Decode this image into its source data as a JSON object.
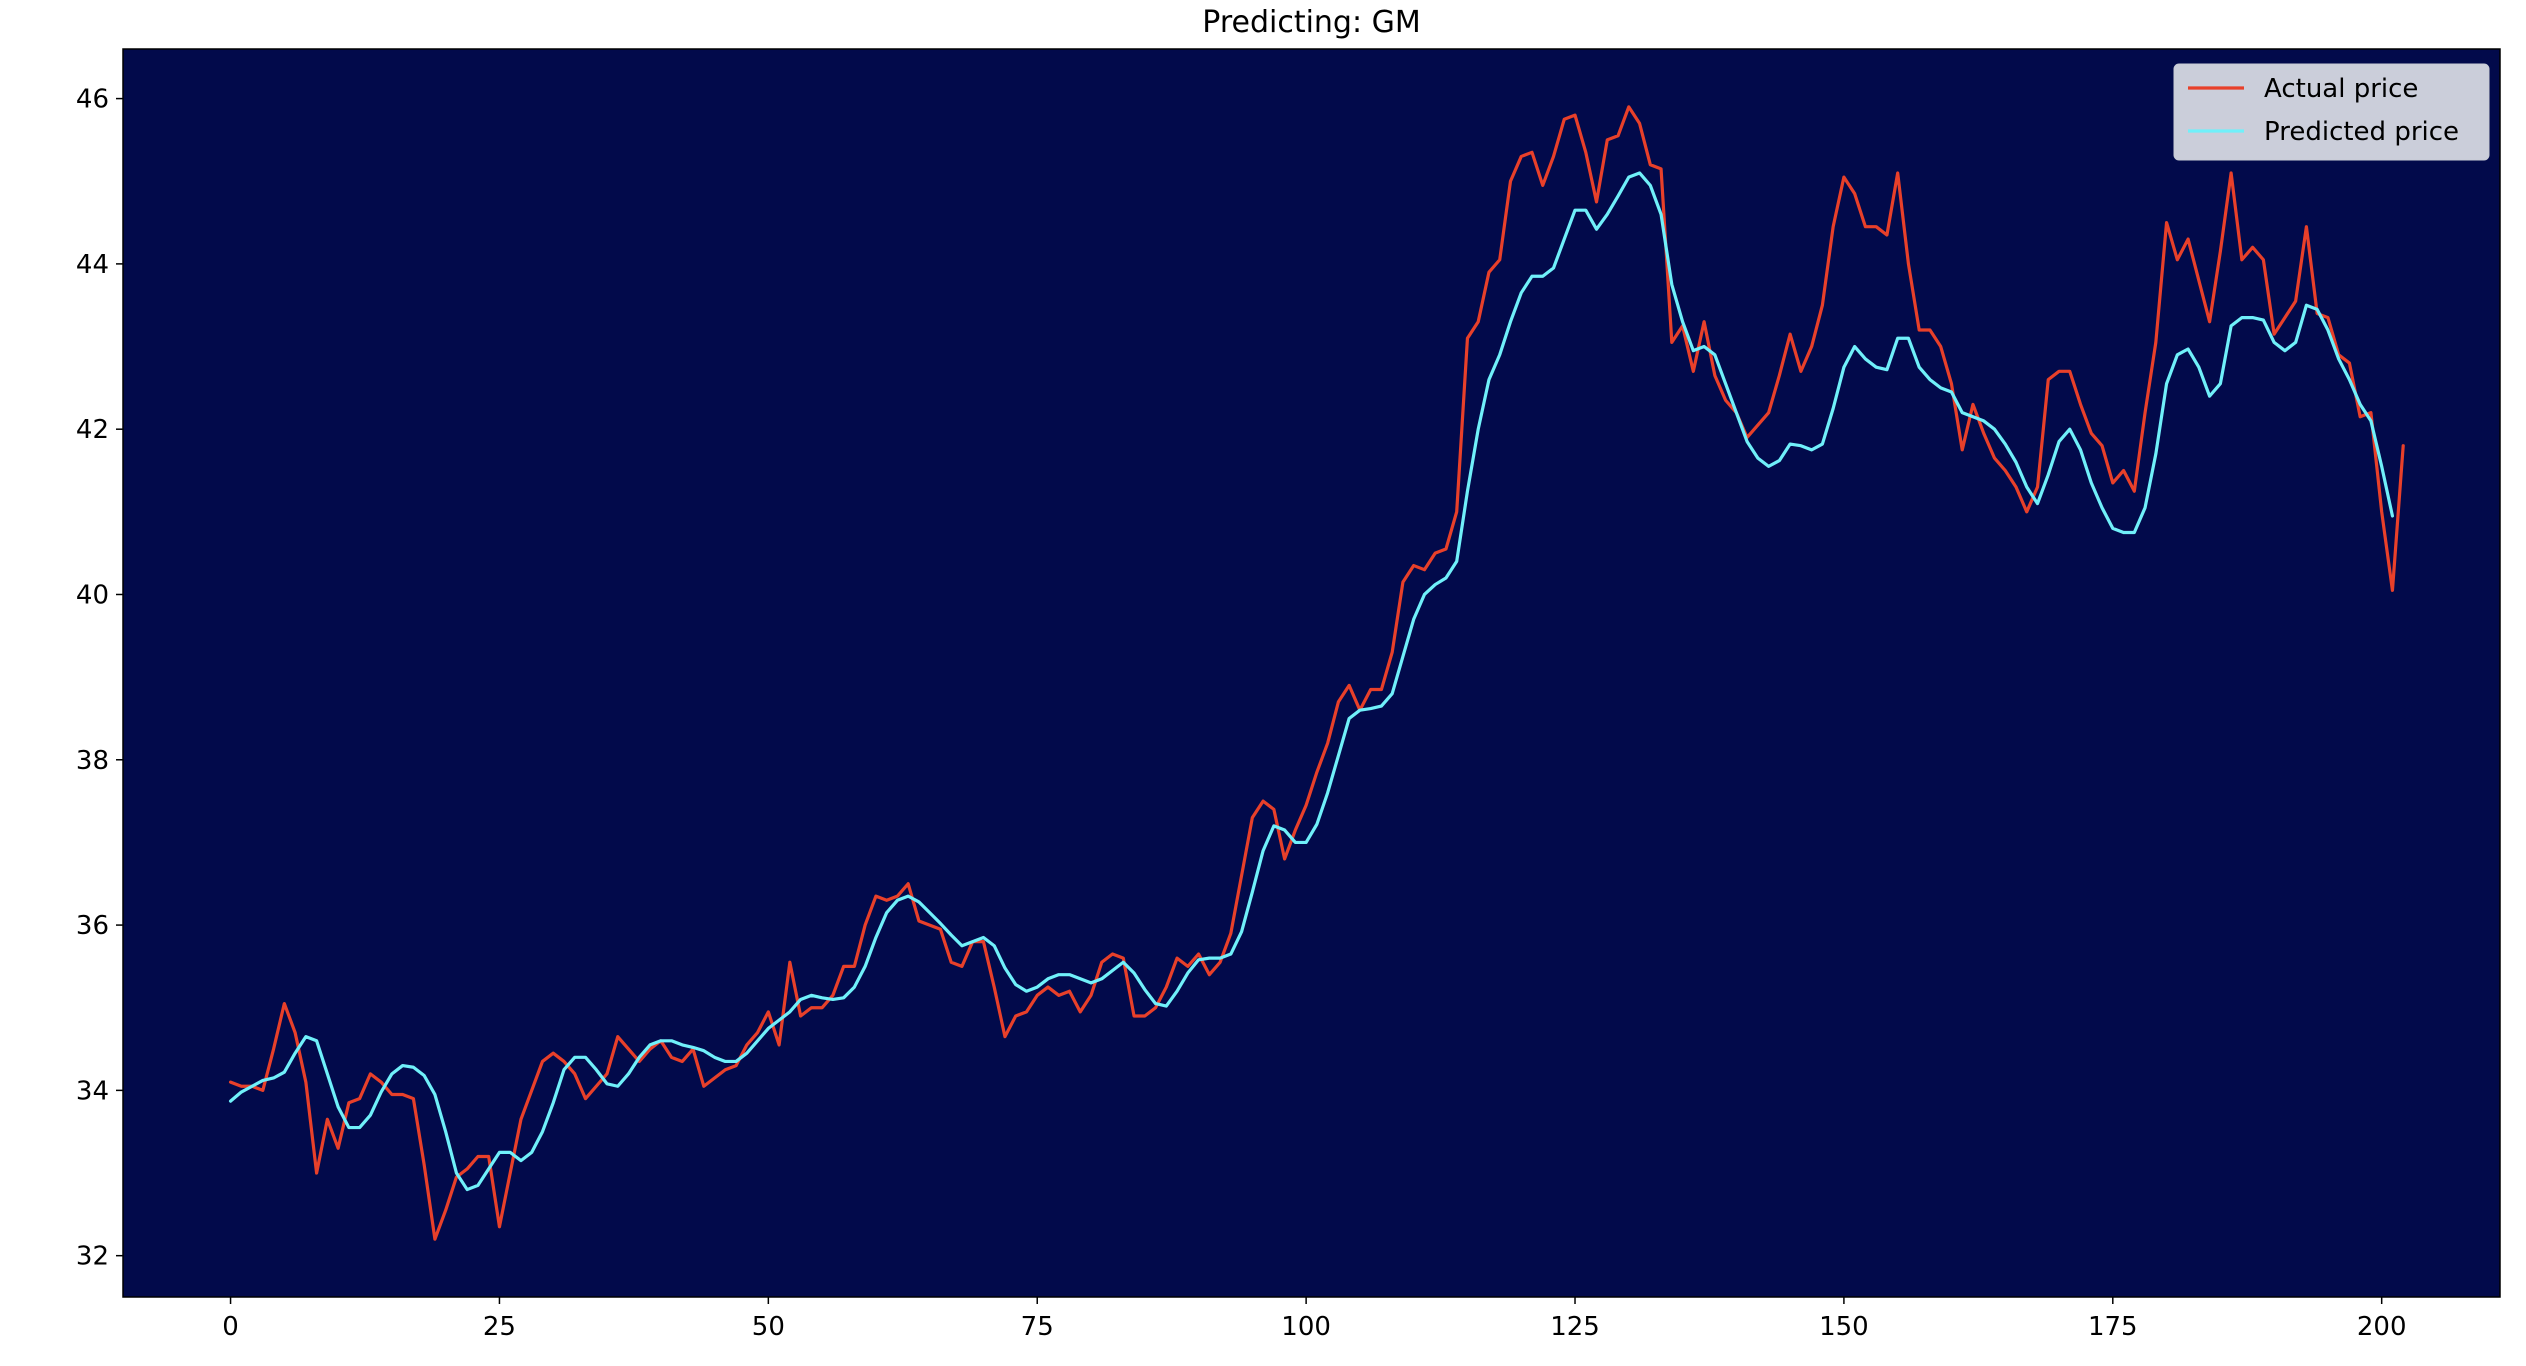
{
  "chart_data": {
    "type": "line",
    "title": "Predicting: GM",
    "xlabel": "",
    "ylabel": "",
    "xlim": [
      -10,
      211
    ],
    "ylim": [
      31.5,
      46.6
    ],
    "xticks": [
      0,
      25,
      50,
      75,
      100,
      125,
      150,
      175,
      200
    ],
    "yticks": [
      32,
      34,
      36,
      38,
      40,
      42,
      44,
      46
    ],
    "grid": false,
    "legend_placement": "top-right",
    "colors": {
      "plot_background": "#020a4b",
      "actual": "#e8402a",
      "predicted": "#70f0fa",
      "legend_background": "#d6d9e2"
    },
    "series": [
      {
        "name": "Actual price",
        "color": "#e8402a",
        "values": [
          34.1,
          34.05,
          34.05,
          34.0,
          34.5,
          35.05,
          34.7,
          34.1,
          33.0,
          33.65,
          33.3,
          33.85,
          33.9,
          34.2,
          34.1,
          33.95,
          33.95,
          33.9,
          33.1,
          32.2,
          32.55,
          32.95,
          33.05,
          33.2,
          33.2,
          32.35,
          33.0,
          33.65,
          34.0,
          34.35,
          34.45,
          34.35,
          34.2,
          33.9,
          34.05,
          34.2,
          34.65,
          34.5,
          34.35,
          34.5,
          34.6,
          34.4,
          34.35,
          34.5,
          34.05,
          34.15,
          34.25,
          34.3,
          34.55,
          34.7,
          34.95,
          34.55,
          35.55,
          34.9,
          35.0,
          35.0,
          35.15,
          35.5,
          35.5,
          36.0,
          36.35,
          36.3,
          36.35,
          36.5,
          36.05,
          36.0,
          35.95,
          35.55,
          35.5,
          35.8,
          35.8,
          35.25,
          34.65,
          34.9,
          34.95,
          35.15,
          35.25,
          35.15,
          35.2,
          34.95,
          35.15,
          35.55,
          35.65,
          35.6,
          34.9,
          34.9,
          35.0,
          35.25,
          35.6,
          35.5,
          35.65,
          35.4,
          35.55,
          35.9,
          36.6,
          37.3,
          37.5,
          37.4,
          36.8,
          37.15,
          37.45,
          37.85,
          38.2,
          38.7,
          38.9,
          38.6,
          38.85,
          38.85,
          39.3,
          40.15,
          40.35,
          40.3,
          40.5,
          40.55,
          41.0,
          43.1,
          43.3,
          43.9,
          44.05,
          45.0,
          45.3,
          45.35,
          44.95,
          45.3,
          45.75,
          45.8,
          45.35,
          44.75,
          45.5,
          45.55,
          45.9,
          45.7,
          45.2,
          45.15,
          43.05,
          43.25,
          42.7,
          43.3,
          42.65,
          42.35,
          42.2,
          41.9,
          42.05,
          42.2,
          42.65,
          43.15,
          42.7,
          43.0,
          43.5,
          44.45,
          45.05,
          44.85,
          44.45,
          44.45,
          44.35,
          45.1,
          44.0,
          43.2,
          43.2,
          43.0,
          42.55,
          41.75,
          42.3,
          41.95,
          41.65,
          41.5,
          41.3,
          41.0,
          41.3,
          42.6,
          42.7,
          42.7,
          42.3,
          41.95,
          41.8,
          41.35,
          41.5,
          41.25,
          42.2,
          43.05,
          44.5,
          44.05,
          44.3,
          43.8,
          43.3,
          44.15,
          45.1,
          44.05,
          44.2,
          44.05,
          43.15,
          43.35,
          43.55,
          44.45,
          43.4,
          43.35,
          42.9,
          42.8,
          42.15,
          42.2,
          41.0,
          40.05,
          41.8
        ]
      },
      {
        "name": "Predicted price",
        "color": "#70f0fa",
        "values": [
          33.87,
          33.98,
          34.05,
          34.12,
          34.15,
          34.22,
          34.45,
          34.65,
          34.6,
          34.2,
          33.8,
          33.55,
          33.55,
          33.7,
          33.98,
          34.2,
          34.3,
          34.28,
          34.18,
          33.95,
          33.5,
          33.0,
          32.8,
          32.85,
          33.05,
          33.25,
          33.25,
          33.15,
          33.25,
          33.5,
          33.85,
          34.25,
          34.4,
          34.4,
          34.25,
          34.08,
          34.05,
          34.2,
          34.4,
          34.55,
          34.6,
          34.6,
          34.55,
          34.52,
          34.48,
          34.4,
          34.35,
          34.35,
          34.45,
          34.6,
          34.75,
          34.85,
          34.95,
          35.1,
          35.15,
          35.12,
          35.1,
          35.12,
          35.25,
          35.5,
          35.85,
          36.15,
          36.3,
          36.35,
          36.28,
          36.15,
          36.02,
          35.88,
          35.75,
          35.8,
          35.85,
          35.75,
          35.48,
          35.28,
          35.2,
          35.25,
          35.35,
          35.4,
          35.4,
          35.35,
          35.3,
          35.35,
          35.45,
          35.55,
          35.42,
          35.22,
          35.05,
          35.02,
          35.2,
          35.42,
          35.58,
          35.6,
          35.6,
          35.65,
          35.92,
          36.4,
          36.9,
          37.2,
          37.15,
          37.0,
          37.0,
          37.22,
          37.6,
          38.05,
          38.5,
          38.6,
          38.62,
          38.65,
          38.8,
          39.25,
          39.7,
          40.0,
          40.12,
          40.2,
          40.4,
          41.25,
          42.0,
          42.6,
          42.9,
          43.3,
          43.65,
          43.85,
          43.85,
          43.95,
          44.3,
          44.65,
          44.65,
          44.42,
          44.6,
          44.82,
          45.05,
          45.1,
          44.95,
          44.6,
          43.75,
          43.3,
          42.95,
          43.0,
          42.9,
          42.55,
          42.2,
          41.85,
          41.65,
          41.55,
          41.62,
          41.82,
          41.8,
          41.75,
          41.82,
          42.25,
          42.75,
          43.0,
          42.85,
          42.75,
          42.72,
          43.1,
          43.1,
          42.75,
          42.6,
          42.5,
          42.45,
          42.2,
          42.15,
          42.1,
          42.0,
          41.82,
          41.6,
          41.3,
          41.1,
          41.45,
          41.85,
          42.0,
          41.75,
          41.35,
          41.05,
          40.8,
          40.75,
          40.75,
          41.05,
          41.7,
          42.55,
          42.9,
          42.97,
          42.75,
          42.4,
          42.55,
          43.25,
          43.35,
          43.35,
          43.32,
          43.05,
          42.95,
          43.05,
          43.5,
          43.45,
          43.2,
          42.85,
          42.6,
          42.3,
          42.1,
          41.55,
          40.95
        ]
      }
    ]
  }
}
